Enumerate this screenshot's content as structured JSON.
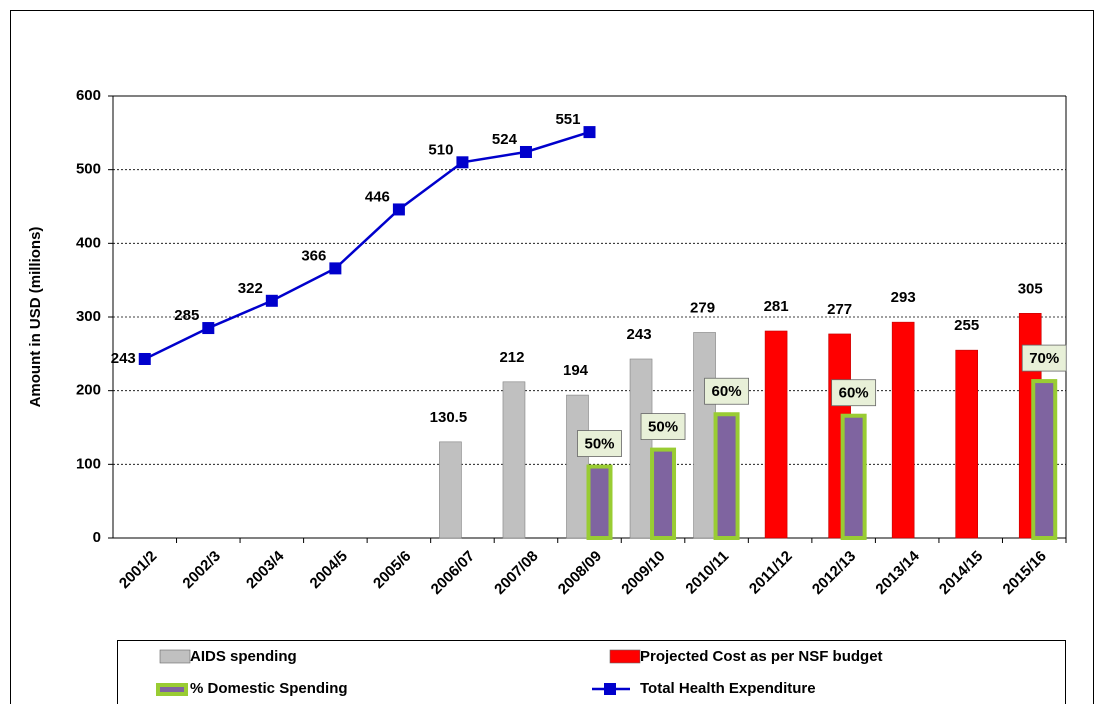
{
  "chart_data": {
    "type": "bar",
    "y_label": "Amount in USD (millions)",
    "categories": [
      "2001/2",
      "2002/3",
      "2003/4",
      "2004/5",
      "2005/6",
      "2006/07",
      "2007/08",
      "2008/09",
      "2009/10",
      "2010/11",
      "2011/12",
      "2012/13",
      "2013/14",
      "2014/15",
      "2015/16"
    ],
    "ylim": [
      0,
      600
    ],
    "yticks": [
      0,
      100,
      200,
      300,
      400,
      500,
      600
    ],
    "grid": true,
    "legend": "bottom",
    "series": [
      {
        "name": "AIDS spending",
        "color": "#c0c0c0",
        "values": [
          null,
          null,
          null,
          null,
          null,
          130.5,
          212,
          194,
          243,
          279,
          null,
          null,
          null,
          null,
          null
        ]
      },
      {
        "name": "Projected Cost as per NSF budget",
        "color": "#ff0000",
        "values": [
          null,
          null,
          null,
          null,
          null,
          null,
          null,
          null,
          null,
          null,
          281,
          277,
          293,
          255,
          305
        ]
      },
      {
        "name": "% Domestic Spending",
        "color": "#7f64a0",
        "border": "#99cc33",
        "values": [
          null,
          null,
          null,
          null,
          null,
          null,
          null,
          97,
          120,
          168,
          null,
          166,
          null,
          null,
          213
        ],
        "value_labels": [
          null,
          null,
          null,
          null,
          null,
          null,
          null,
          "50%",
          "50%",
          "60%",
          null,
          "60%",
          null,
          null,
          "70%"
        ]
      },
      {
        "name": "Total Health Expenditure",
        "type": "line",
        "color": "#0000cc",
        "values": [
          243,
          285,
          322,
          366,
          446,
          510,
          524,
          551,
          null,
          null,
          null,
          null,
          null,
          null,
          null
        ]
      }
    ]
  }
}
